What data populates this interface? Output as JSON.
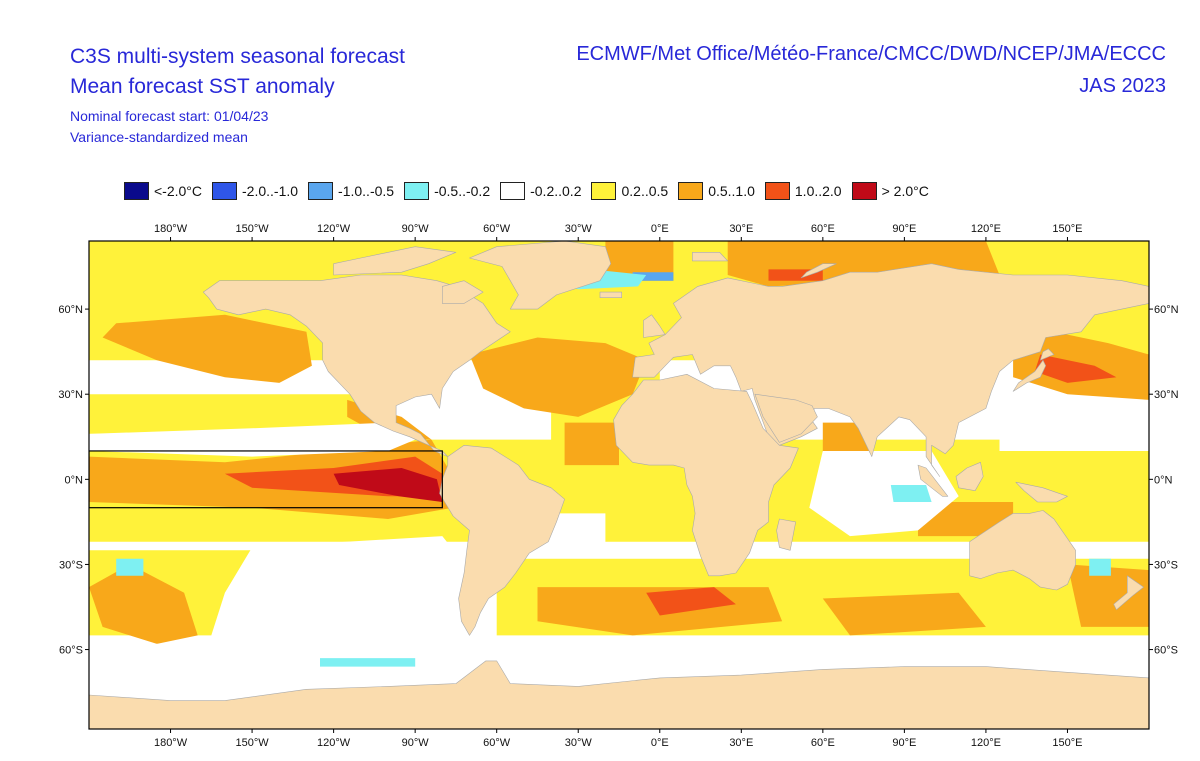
{
  "header": {
    "title_line1": "C3S multi-system seasonal forecast",
    "title_line2": "Mean forecast SST anomaly",
    "subtitle_line1": "Nominal forecast start: 01/04/23",
    "subtitle_line2": "Variance-standardized mean",
    "models": "ECMWF/Met Office/Météo-France/CMCC/DWD/NCEP/JMA/ECCC",
    "period": "JAS 2023"
  },
  "legend": [
    {
      "label": "<-2.0°C",
      "color": "#0a0a8c"
    },
    {
      "label": "-2.0..-1.0",
      "color": "#2f56e8"
    },
    {
      "label": "-1.0..-0.5",
      "color": "#5aa6ee"
    },
    {
      "label": "-0.5..-0.2",
      "color": "#7ef0f2"
    },
    {
      "label": "-0.2..0.2",
      "color": "#ffffff"
    },
    {
      "label": "0.2..0.5",
      "color": "#fff23a"
    },
    {
      "label": "0.5..1.0",
      "color": "#f8a81a"
    },
    {
      "label": "1.0..2.0",
      "color": "#f25218"
    },
    {
      "label": "> 2.0°C",
      "color": "#c00a18"
    }
  ],
  "axes": {
    "lon_labels": [
      "180°W",
      "150°W",
      "120°W",
      "90°W",
      "60°W",
      "30°W",
      "0°E",
      "30°E",
      "60°E",
      "90°E",
      "120°E",
      "150°E"
    ],
    "lon_values": [
      -180,
      -150,
      -120,
      -90,
      -60,
      -30,
      0,
      30,
      60,
      90,
      120,
      150
    ],
    "lat_labels": [
      "60°N",
      "30°N",
      "0°N",
      "30°S",
      "60°S"
    ],
    "lat_values": [
      60,
      30,
      0,
      -30,
      -60
    ]
  },
  "map": {
    "lon_range": [
      -210,
      180
    ],
    "lat_range": [
      -88,
      84
    ],
    "land_color": "#fadcae",
    "nino_box": {
      "lon": [
        -210,
        -80
      ],
      "lat": [
        -10,
        10
      ]
    }
  }
}
